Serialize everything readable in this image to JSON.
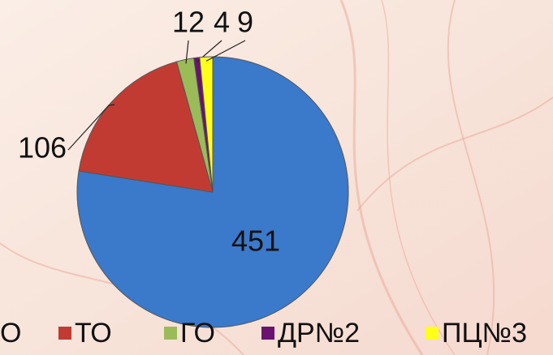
{
  "chart_data": {
    "type": "pie",
    "categories": [
      "О",
      "ТО",
      "ГО",
      "ДР№2",
      "ПЦ№3"
    ],
    "values": [
      451,
      106,
      12,
      4,
      9
    ],
    "colors": [
      "#3b79ca",
      "#c23b33",
      "#9bbb59",
      "#6a1270",
      "#ffff1a"
    ],
    "legend": "bottom"
  }
}
